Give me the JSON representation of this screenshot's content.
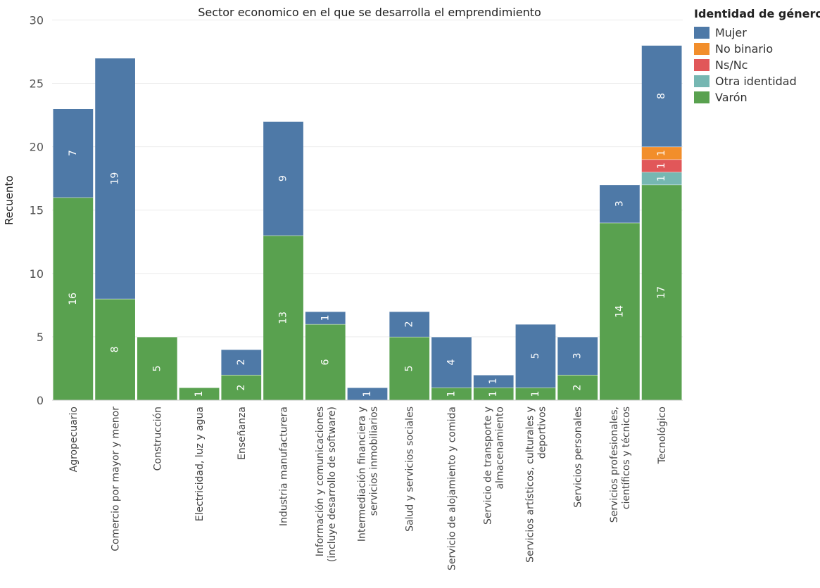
{
  "chart_data": {
    "type": "bar",
    "stacked": true,
    "title": "Sector economico en el que se desarrolla el emprendimiento",
    "ylabel": "Recuento",
    "xlabel": "",
    "ylim": [
      0,
      30
    ],
    "yticks": [
      0,
      5,
      10,
      15,
      20,
      25,
      30
    ],
    "grid": true,
    "legend_title": "Identidad de género",
    "legend_position": "top-right",
    "categories": [
      [
        "Agropecuario"
      ],
      [
        "Comercio por mayor y menor"
      ],
      [
        "Construcción"
      ],
      [
        "Electricidad, luz y agua"
      ],
      [
        "Enseñanza"
      ],
      [
        "Industria manufacturera"
      ],
      [
        "Información y comunicaciones",
        "(incluye desarrollo de software)"
      ],
      [
        "Intermediación financiera y",
        "servicios inmobiliarios"
      ],
      [
        "Salud y servicios sociales"
      ],
      [
        "Servicio de alojamiento y comida"
      ],
      [
        "Servicio de transporte y",
        "almacenamiento"
      ],
      [
        "Servicios artísticos, culturales y",
        "deportivos"
      ],
      [
        "Servicios personales"
      ],
      [
        "Servicios profesionales,",
        "científicos y técnicos"
      ],
      [
        "Tecnológico"
      ]
    ],
    "series": [
      {
        "name": "Varón",
        "color": "#59A14F",
        "values": [
          16,
          8,
          5,
          1,
          2,
          13,
          6,
          0,
          5,
          1,
          1,
          1,
          2,
          14,
          17
        ]
      },
      {
        "name": "Otra identidad",
        "color": "#76B7B2",
        "values": [
          0,
          0,
          0,
          0,
          0,
          0,
          0,
          0,
          0,
          0,
          0,
          0,
          0,
          0,
          1
        ]
      },
      {
        "name": "Ns/Nc",
        "color": "#E15759",
        "values": [
          0,
          0,
          0,
          0,
          0,
          0,
          0,
          0,
          0,
          0,
          0,
          0,
          0,
          0,
          1
        ]
      },
      {
        "name": "No binario",
        "color": "#F28E2B",
        "values": [
          0,
          0,
          0,
          0,
          0,
          0,
          0,
          0,
          0,
          0,
          0,
          0,
          0,
          0,
          1
        ]
      },
      {
        "name": "Mujer",
        "color": "#4E79A7",
        "values": [
          7,
          19,
          0,
          0,
          2,
          9,
          1,
          1,
          2,
          4,
          1,
          5,
          3,
          3,
          8
        ]
      }
    ],
    "legend_order": [
      "Mujer",
      "No binario",
      "Ns/Nc",
      "Otra identidad",
      "Varón"
    ]
  }
}
